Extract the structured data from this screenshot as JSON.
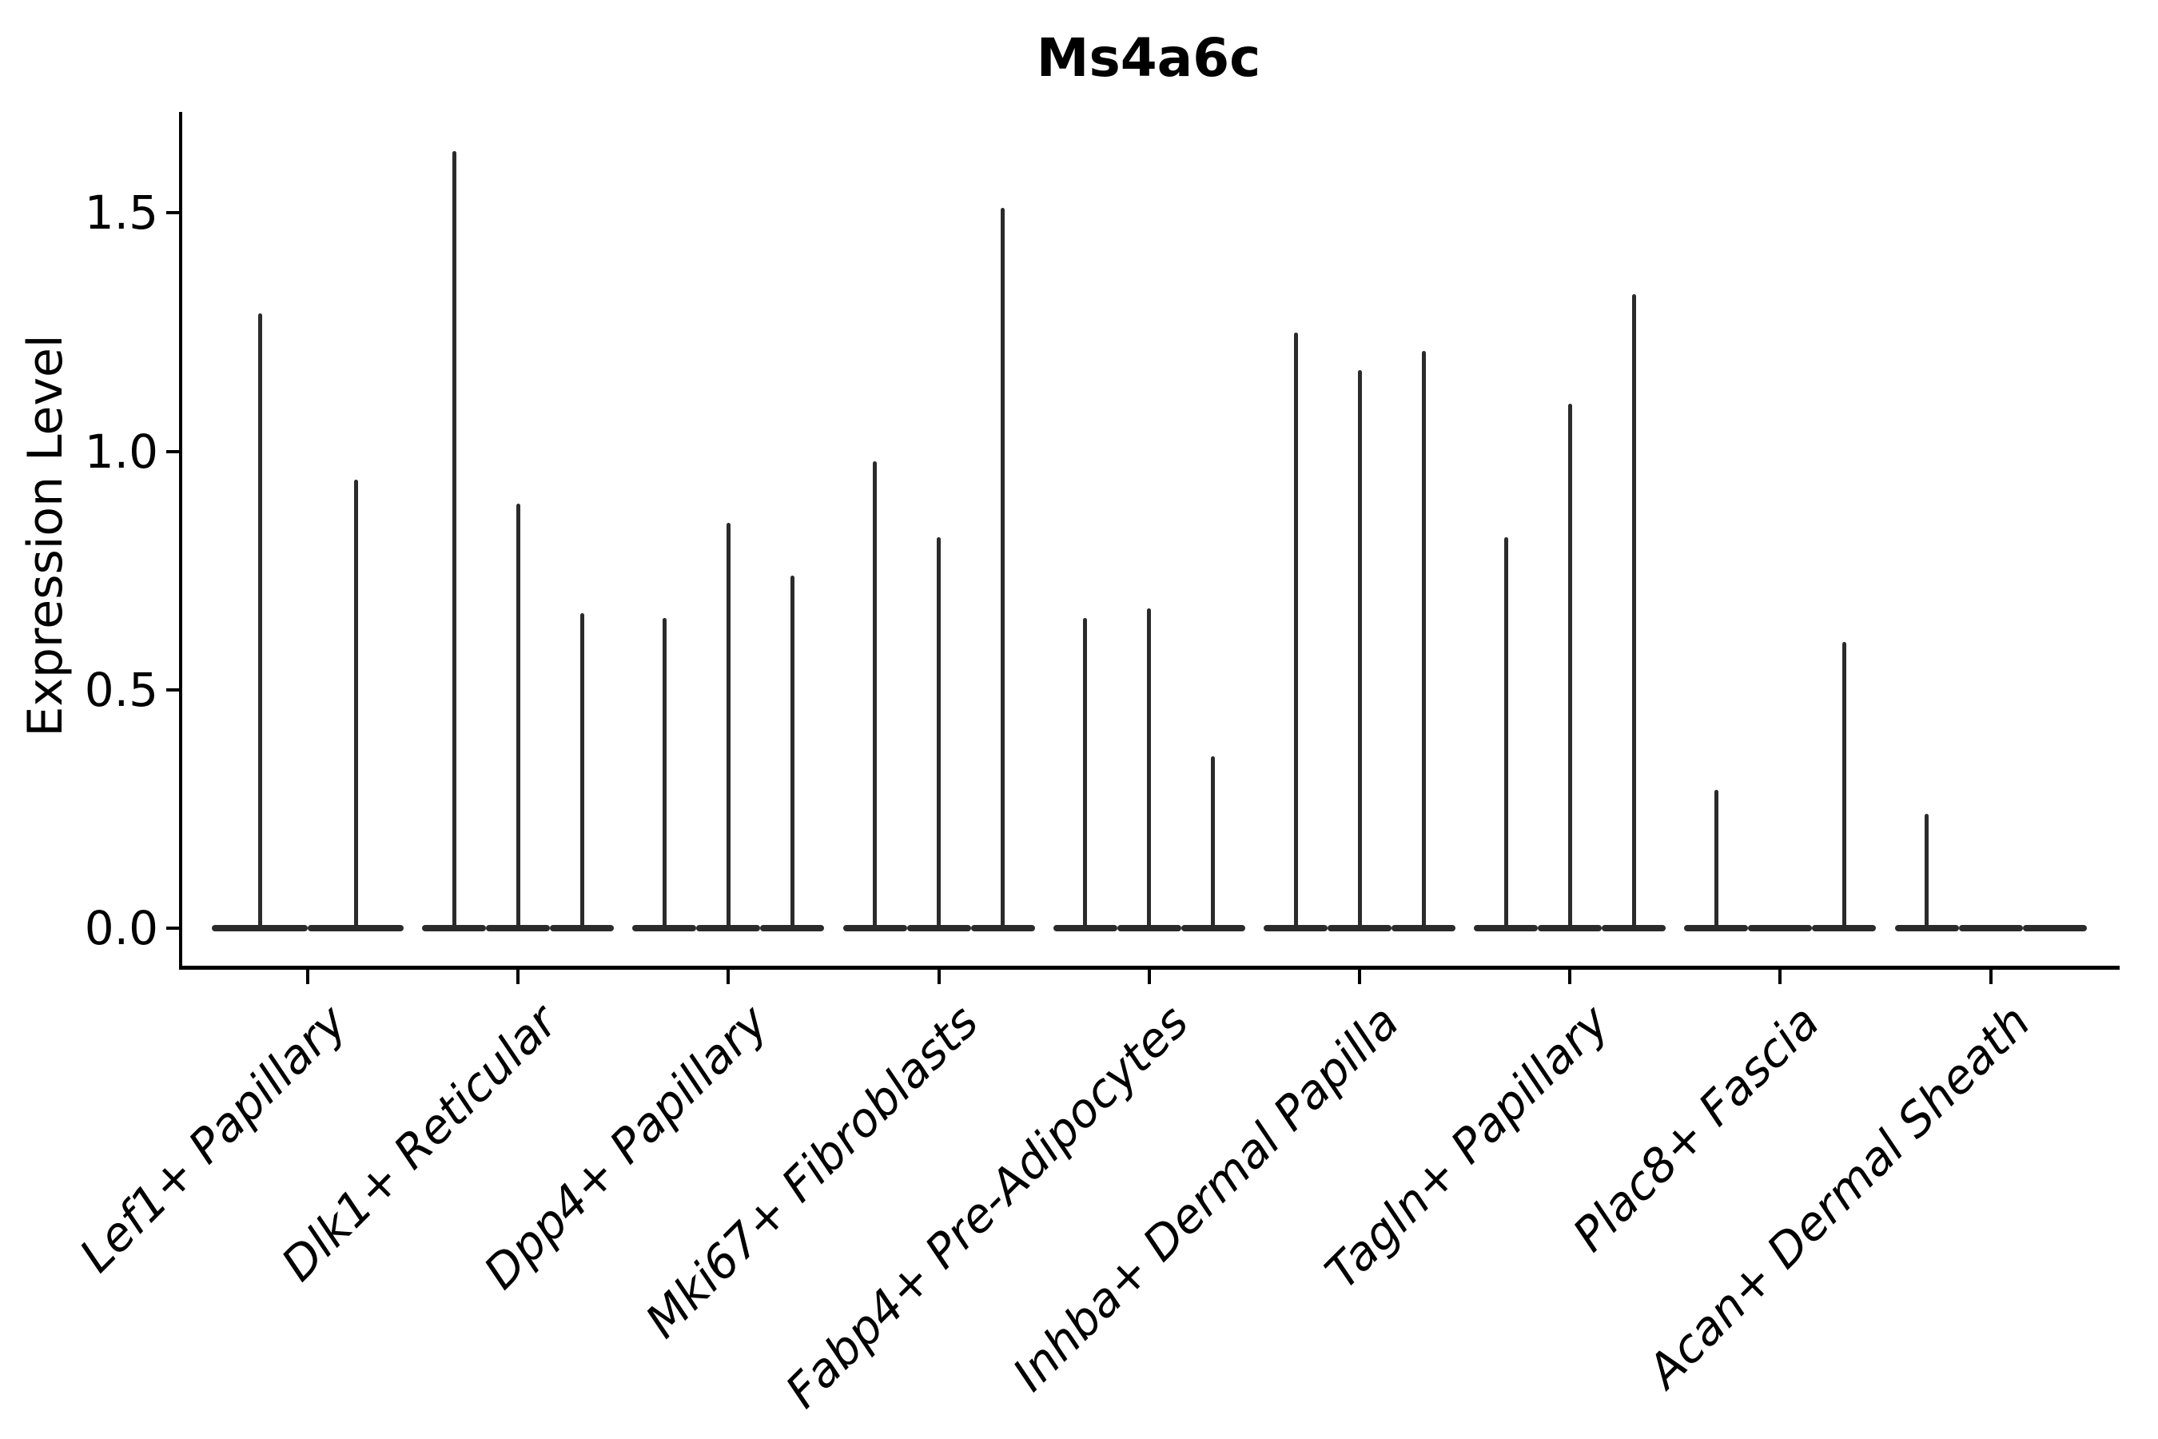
{
  "title": "Ms4a6c",
  "y_axis": {
    "label": "Expression Level",
    "tick_labels": [
      "0.0",
      "0.5",
      "1.0",
      "1.5"
    ],
    "tick_values": [
      0.0,
      0.5,
      1.0,
      1.5
    ]
  },
  "colors": {
    "violin": "#2b2b2b",
    "spine": "#000000",
    "text": "#000000"
  },
  "chart_data": {
    "type": "violin",
    "title": "Ms4a6c",
    "xlabel": "",
    "ylabel": "Expression Level",
    "ylim": [
      -0.08,
      1.71
    ],
    "yticks": [
      0.0,
      0.5,
      1.0,
      1.5
    ],
    "grid": false,
    "legend": "none",
    "style_note": "very thin spike-like violins with flat bases at 0; 2-3 violins per category",
    "categories": [
      "Lef1+ Papillary",
      "Dlk1+ Reticular",
      "Dpp4+ Papillary",
      "Mki67+ Fibroblasts",
      "Fabp4+ Pre-Adipocytes",
      "Inhba+ Dermal Papilla",
      "Tagln+ Papillary",
      "Plac8+ Fascia",
      "Acan+ Dermal Sheath"
    ],
    "violins": [
      {
        "category": "Lef1+ Papillary",
        "spike_maxima": [
          1.29,
          0.94
        ]
      },
      {
        "category": "Dlk1+ Reticular",
        "spike_maxima": [
          1.63,
          0.89,
          0.66
        ]
      },
      {
        "category": "Dpp4+ Papillary",
        "spike_maxima": [
          0.65,
          0.85,
          0.74
        ]
      },
      {
        "category": "Mki67+ Fibroblasts",
        "spike_maxima": [
          0.98,
          0.82,
          1.51
        ]
      },
      {
        "category": "Fabp4+ Pre-Adipocytes",
        "spike_maxima": [
          0.65,
          0.67,
          0.36
        ]
      },
      {
        "category": "Inhba+ Dermal Papilla",
        "spike_maxima": [
          1.25,
          1.17,
          1.21
        ]
      },
      {
        "category": "Tagln+ Papillary",
        "spike_maxima": [
          0.82,
          1.1,
          1.33
        ]
      },
      {
        "category": "Plac8+ Fascia",
        "spike_maxima": [
          0.29,
          0.0,
          0.6
        ]
      },
      {
        "category": "Acan+ Dermal Sheath",
        "spike_maxima": [
          0.24,
          0.0,
          0.0
        ]
      }
    ]
  }
}
